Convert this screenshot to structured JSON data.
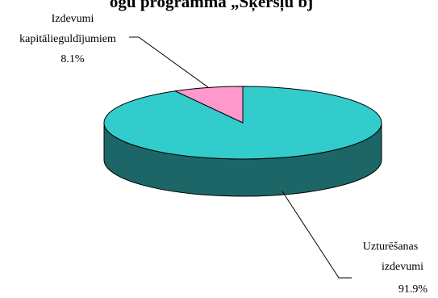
{
  "chart_data": {
    "type": "pie",
    "title": "ogu programma „Šķēršļu bj",
    "slices": [
      {
        "label_lines": [
          "Izdevumi",
          "kapitālieguldījumiem"
        ],
        "value": 8.1,
        "value_label": "8.1%",
        "color": "#ff99cc"
      },
      {
        "label_lines": [
          "Uzturēšanas",
          "izdevumi"
        ],
        "value": 91.9,
        "value_label": "91.9%",
        "color": "#33cccc"
      }
    ],
    "side_color": "#1d6667",
    "legend": "none"
  }
}
